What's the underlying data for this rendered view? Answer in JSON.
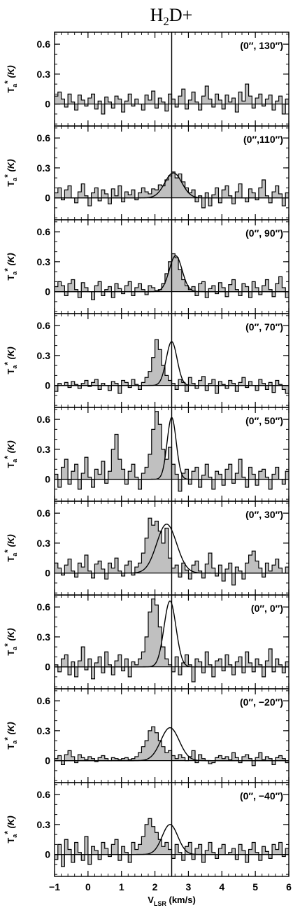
{
  "chart_data": {
    "type": "line",
    "title": "H2D+",
    "title_parts": {
      "base": "H",
      "sub": "2",
      "rest": "D+"
    },
    "ylabel": {
      "base": "T",
      "sub": "a",
      "sup": "*",
      "unit": "(K)"
    },
    "xlabel": {
      "base": "V",
      "sub": "LSR",
      "unit": "(km/s)"
    },
    "xlim": [
      -1,
      6
    ],
    "xticks": [
      -1,
      0,
      1,
      2,
      3,
      4,
      5,
      6
    ],
    "yticks": [
      0,
      0.3,
      0.6
    ],
    "ytick_labels": [
      "0",
      "0.3",
      "0.6"
    ],
    "ylim": [
      -0.22,
      0.72
    ],
    "vline_x": 2.5,
    "legend": "none",
    "grid": false,
    "series_style": "histogram spectrum with filled area plus Gaussian fit",
    "panels": [
      {
        "label": "(0″, 130″)",
        "fit": {
          "amp": 0.0,
          "center": 2.5,
          "fwhm": 0.4
        },
        "values": [
          0.08,
          0.12,
          0.05,
          -0.03,
          0.1,
          0.02,
          -0.06,
          0.09,
          0.04,
          -0.02,
          0.06,
          0.1,
          -0.05,
          0.03,
          -0.1,
          0.07,
          0.02,
          -0.04,
          0.08,
          0.05,
          -0.08,
          0.03,
          0.1,
          -0.02,
          0.05,
          0.0,
          -0.06,
          0.09,
          0.04,
          0.13,
          -0.04,
          0.06,
          0.02,
          -0.07,
          0.1,
          0.05,
          -0.03,
          0.08,
          0.15,
          -0.05,
          0.04,
          0.12,
          0.02,
          -0.06,
          0.08,
          0.18,
          0.05,
          -0.03,
          0.1,
          0.04,
          -0.05,
          0.09,
          0.02,
          0.06,
          -0.08,
          0.12,
          0.03,
          0.2,
          0.08,
          -0.04,
          0.06,
          0.1,
          -0.02,
          0.05,
          0.09,
          -0.06,
          0.03,
          0.08,
          -0.1,
          0.05
        ]
      },
      {
        "label": "(0″,110″)",
        "fit": {
          "amp": 0.25,
          "center": 2.55,
          "fwhm": 0.6
        },
        "values": [
          0.05,
          0.1,
          -0.02,
          0.08,
          0.12,
          0.0,
          -0.05,
          0.06,
          0.14,
          0.02,
          -0.08,
          0.05,
          0.1,
          -0.03,
          0.08,
          0.04,
          -0.06,
          0.09,
          0.02,
          0.12,
          -0.04,
          0.06,
          0.03,
          0.08,
          -0.02,
          0.05,
          0.1,
          0.06,
          0.04,
          0.09,
          0.08,
          0.13,
          0.12,
          0.18,
          0.22,
          0.26,
          0.2,
          0.24,
          0.16,
          0.1,
          0.05,
          0.08,
          -0.04,
          0.02,
          -0.1,
          0.05,
          -0.08,
          0.03,
          0.1,
          -0.05,
          0.08,
          0.12,
          0.02,
          -0.06,
          0.06,
          0.14,
          0.0,
          -0.04,
          0.09,
          0.05,
          -0.02,
          0.1,
          0.18,
          0.02,
          -0.05,
          0.06,
          0.12,
          0.04,
          -0.08,
          0.05
        ]
      },
      {
        "label": "(0″, 90″)",
        "fit": {
          "amp": 0.36,
          "center": 2.62,
          "fwhm": 0.45
        },
        "values": [
          0.05,
          0.1,
          0.06,
          -0.04,
          0.08,
          0.12,
          0.02,
          -0.06,
          0.09,
          0.04,
          0.0,
          -0.08,
          0.06,
          0.1,
          -0.04,
          0.02,
          0.05,
          -0.06,
          0.08,
          0.03,
          -0.02,
          0.06,
          0.1,
          -0.04,
          0.04,
          0.08,
          0.02,
          -0.03,
          0.06,
          0.04,
          0.01,
          0.02,
          0.08,
          0.18,
          0.3,
          0.38,
          0.34,
          0.22,
          0.12,
          0.06,
          0.02,
          0.05,
          -0.04,
          0.08,
          0.1,
          -0.06,
          0.03,
          0.06,
          -0.02,
          0.09,
          0.04,
          -0.05,
          0.07,
          0.12,
          0.02,
          -0.04,
          0.08,
          0.05,
          -0.06,
          0.1,
          0.04,
          -0.03,
          0.06,
          0.12,
          0.02,
          -0.05,
          0.08,
          0.15,
          0.04,
          -0.06
        ]
      },
      {
        "label": "(0″, 70″)",
        "fit": {
          "amp": 0.44,
          "center": 2.5,
          "fwhm": 0.38
        },
        "values": [
          -0.06,
          0.02,
          0.0,
          0.03,
          -0.02,
          0.04,
          0.01,
          -0.03,
          0.02,
          0.05,
          -0.01,
          0.03,
          0.06,
          -0.04,
          0.02,
          0.0,
          -0.05,
          0.04,
          0.02,
          -0.08,
          0.05,
          0.03,
          -0.02,
          0.06,
          0.01,
          -0.04,
          0.03,
          0.08,
          0.14,
          0.28,
          0.46,
          0.36,
          0.2,
          0.1,
          0.05,
          0.02,
          -0.04,
          0.06,
          0.03,
          -0.06,
          0.08,
          0.02,
          -0.03,
          0.05,
          0.09,
          -0.05,
          0.02,
          0.06,
          -0.08,
          0.04,
          0.01,
          -0.03,
          0.05,
          0.02,
          -0.06,
          0.03,
          0.08,
          -0.02,
          0.04,
          0.0,
          -0.05,
          0.06,
          0.02,
          -0.04,
          0.03,
          -0.07,
          0.05,
          0.01,
          -0.04,
          -0.08
        ]
      },
      {
        "label": "(0″, 50″)",
        "fit": {
          "amp": 0.62,
          "center": 2.5,
          "fwhm": 0.32
        },
        "values": [
          0.05,
          -0.08,
          0.12,
          0.2,
          -0.05,
          0.08,
          0.15,
          -0.1,
          0.06,
          0.22,
          0.02,
          -0.08,
          0.1,
          0.05,
          0.18,
          -0.04,
          0.08,
          0.3,
          0.45,
          0.2,
          0.1,
          -0.05,
          0.08,
          0.15,
          0.02,
          -0.1,
          0.06,
          0.12,
          0.25,
          0.5,
          0.68,
          0.55,
          0.3,
          0.2,
          0.32,
          0.15,
          0.05,
          -0.12,
          0.06,
          0.1,
          -0.05,
          0.08,
          0.12,
          -0.08,
          0.04,
          0.15,
          0.02,
          -0.1,
          0.08,
          0.05,
          -0.06,
          0.1,
          0.15,
          -0.04,
          0.06,
          0.2,
          0.02,
          -0.08,
          0.12,
          0.05,
          -0.06,
          0.08,
          0.1,
          0.02,
          -0.1,
          0.05,
          0.12,
          0.0,
          -0.05,
          0.08
        ]
      },
      {
        "label": "(0″, 30″)",
        "fit": {
          "amp": 0.49,
          "center": 2.35,
          "fwhm": 0.7
        },
        "values": [
          0.1,
          0.05,
          -0.02,
          0.08,
          0.14,
          0.02,
          -0.04,
          0.1,
          0.06,
          0.18,
          0.02,
          -0.05,
          0.09,
          0.12,
          0.04,
          -0.06,
          0.1,
          0.05,
          0.15,
          0.02,
          -0.03,
          0.08,
          0.12,
          -0.02,
          0.06,
          0.1,
          0.2,
          0.35,
          0.55,
          0.48,
          0.52,
          0.42,
          0.3,
          0.45,
          0.15,
          0.05,
          0.08,
          -0.04,
          0.1,
          0.03,
          -0.06,
          0.08,
          0.12,
          0.02,
          -0.05,
          0.09,
          0.2,
          0.05,
          -0.03,
          0.08,
          -0.08,
          0.04,
          0.1,
          -0.12,
          0.06,
          0.02,
          -0.06,
          0.1,
          0.18,
          0.22,
          0.12,
          0.05,
          -0.04,
          0.1,
          0.02,
          0.08,
          0.14,
          0.05,
          0.0,
          0.06
        ]
      },
      {
        "label": "(0″, 0″)",
        "fit": {
          "amp": 0.66,
          "center": 2.45,
          "fwhm": 0.42
        },
        "values": [
          0.02,
          -0.05,
          0.08,
          0.12,
          -0.08,
          0.05,
          -0.1,
          0.06,
          0.2,
          -0.03,
          0.08,
          -0.12,
          0.04,
          0.1,
          -0.06,
          0.15,
          0.02,
          -0.08,
          0.06,
          0.12,
          -0.04,
          0.08,
          -0.1,
          0.05,
          0.02,
          0.08,
          0.15,
          0.3,
          0.55,
          0.68,
          0.62,
          0.4,
          0.2,
          0.08,
          0.02,
          -0.05,
          0.1,
          -0.08,
          0.04,
          0.12,
          0.02,
          -0.15,
          0.08,
          0.05,
          -0.06,
          0.15,
          0.02,
          -0.1,
          0.06,
          0.08,
          -0.04,
          0.12,
          0.02,
          -0.08,
          0.05,
          0.1,
          -0.06,
          0.15,
          0.04,
          -0.05,
          0.08,
          0.02,
          -0.1,
          0.06,
          0.18,
          -0.05,
          0.08,
          0.02,
          -0.06,
          0.05
        ]
      },
      {
        "label": "(0″, −20″)",
        "fit": {
          "amp": 0.33,
          "center": 2.45,
          "fwhm": 0.65
        },
        "values": [
          0.02,
          0.05,
          -0.04,
          0.06,
          0.1,
          0.04,
          -0.02,
          0.06,
          0.03,
          0.01,
          0.04,
          0.02,
          -0.01,
          0.03,
          0.05,
          0.02,
          0.0,
          0.03,
          0.02,
          0.01,
          0.02,
          0.03,
          0.01,
          0.02,
          0.04,
          0.08,
          0.14,
          0.2,
          0.3,
          0.34,
          0.28,
          0.2,
          0.14,
          0.08,
          0.1,
          0.05,
          0.02,
          0.06,
          0.03,
          0.0,
          0.04,
          0.1,
          -0.02,
          0.06,
          0.02,
          0.0,
          -0.03,
          -0.02,
          0.03,
          0.05,
          0.02,
          0.04,
          0.01,
          0.08,
          0.03,
          -0.02,
          0.04,
          0.06,
          0.02,
          -0.05,
          0.03,
          0.08,
          0.01,
          0.04,
          0.02,
          -0.04,
          0.03,
          0.05,
          0.02,
          -0.02
        ]
      },
      {
        "label": "(0″, −40″)",
        "fit": {
          "amp": 0.3,
          "center": 2.45,
          "fwhm": 0.55
        },
        "values": [
          -0.05,
          0.1,
          -0.12,
          0.15,
          0.05,
          -0.08,
          0.12,
          0.02,
          -0.06,
          0.18,
          -0.1,
          0.08,
          0.04,
          -0.05,
          0.12,
          0.06,
          -0.02,
          0.1,
          0.15,
          -0.06,
          0.08,
          0.02,
          -0.08,
          0.12,
          0.05,
          0.1,
          0.18,
          0.3,
          0.36,
          0.28,
          0.22,
          0.15,
          0.08,
          0.12,
          0.05,
          -0.04,
          0.1,
          0.02,
          -0.06,
          0.08,
          0.12,
          -0.05,
          0.06,
          0.1,
          -0.08,
          0.04,
          0.12,
          0.02,
          -0.04,
          0.06,
          0.1,
          0.0,
          0.02,
          0.06,
          -0.05,
          0.1,
          0.04,
          -0.08,
          0.05,
          0.12,
          0.02,
          -0.06,
          0.08,
          0.03,
          -0.04,
          0.1,
          0.05,
          0.12,
          -0.02,
          0.06
        ]
      }
    ]
  }
}
